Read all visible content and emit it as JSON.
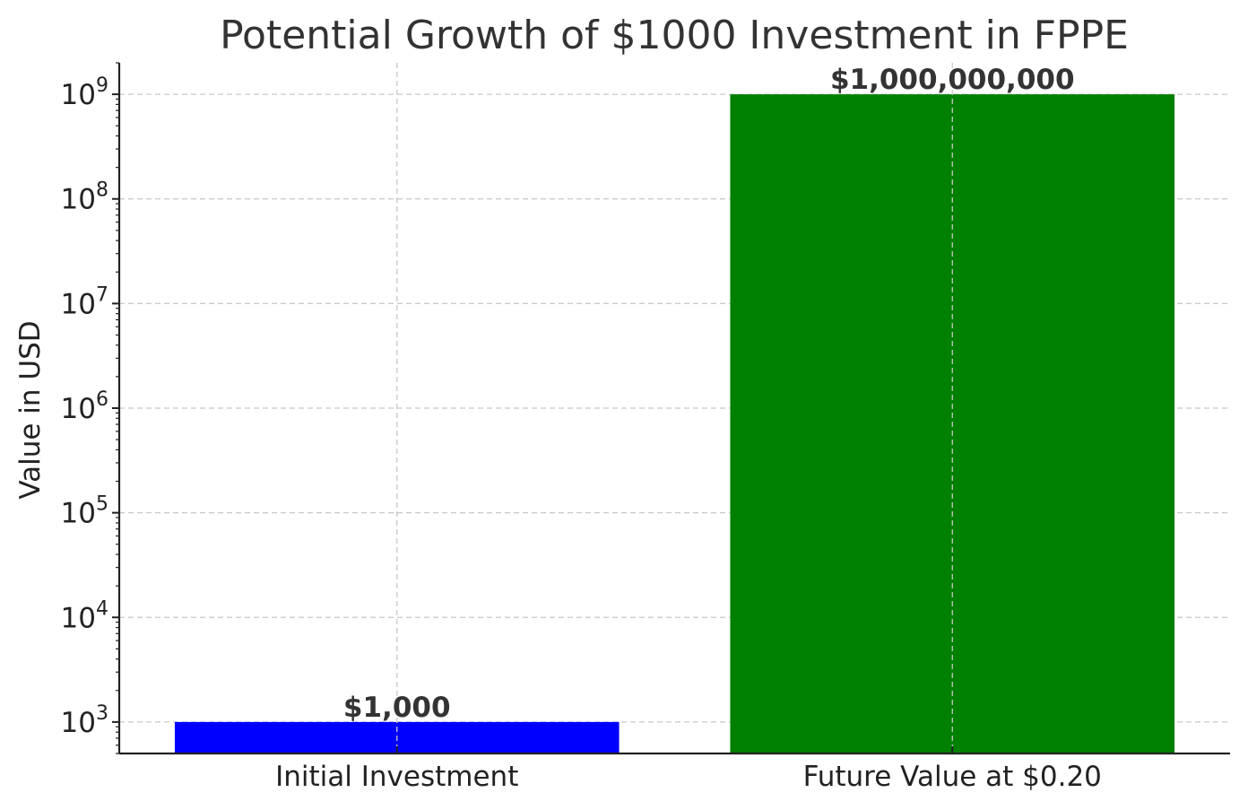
{
  "chart_data": {
    "type": "bar",
    "title": "Potential Growth of $1000 Investment in FPPE",
    "xlabel": "",
    "ylabel": "Value in USD",
    "yscale": "log",
    "ylim": [
      500,
      2000000000
    ],
    "grid": true,
    "categories": [
      "Initial Investment",
      "Future Value at $0.20"
    ],
    "values": [
      1000,
      1000000000
    ],
    "data_labels": [
      "$1,000",
      "$1,000,000,000"
    ],
    "colors": [
      "#0000ff",
      "#008000"
    ],
    "ytick_exponents": [
      "3",
      "4",
      "5",
      "6",
      "7",
      "8",
      "9"
    ],
    "ytick_base": "10"
  }
}
